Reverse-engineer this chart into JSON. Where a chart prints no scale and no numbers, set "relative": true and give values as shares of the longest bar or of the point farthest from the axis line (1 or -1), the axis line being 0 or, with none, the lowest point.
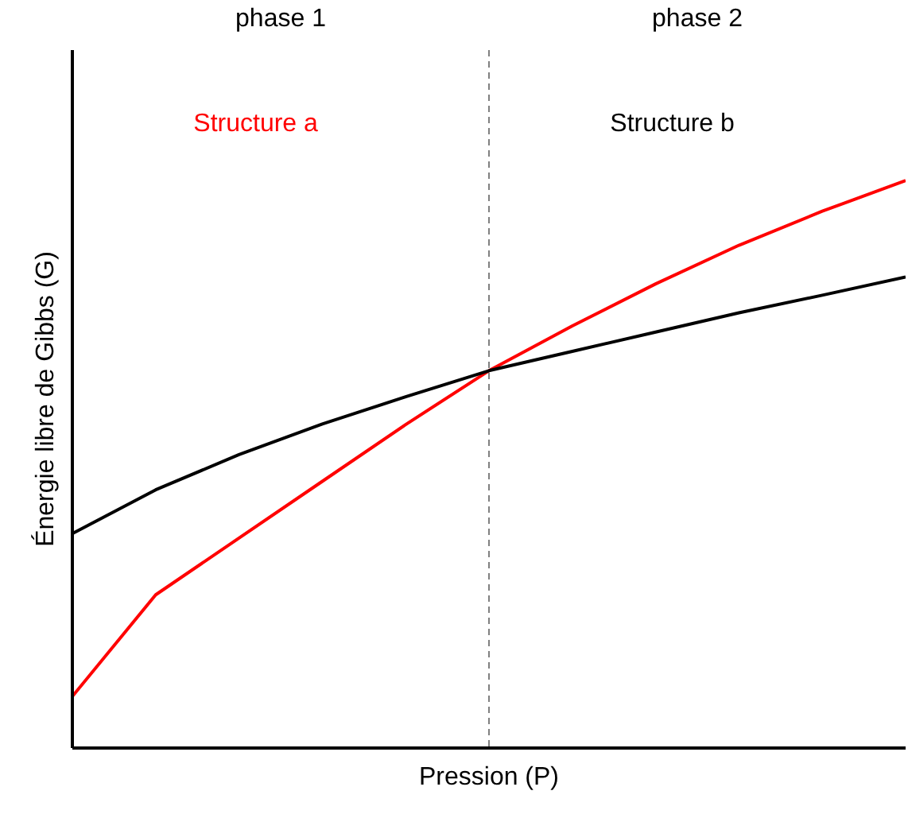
{
  "chart_data": {
    "type": "line",
    "relative": true,
    "xlabel": "Pression (P)",
    "ylabel": "Énergie libre de Gibbs (G)",
    "categories": [
      null,
      null,
      null,
      null,
      null,
      null,
      null,
      null,
      null,
      null,
      null
    ],
    "series": [
      {
        "name": "Structure a",
        "color": "#ff0000",
        "values": [
          0.091,
          0.27,
          0.37,
          0.47,
          0.57,
          0.665,
          0.744,
          0.818,
          0.886,
          0.946,
          1
        ]
      },
      {
        "name": "Structure b",
        "color": "#000000",
        "values": [
          0.378,
          0.455,
          0.517,
          0.571,
          0.619,
          0.665,
          0.699,
          0.733,
          0.767,
          0.798,
          0.83
        ]
      }
    ],
    "ref_lines": [
      {
        "axis": "x",
        "color": "#808080",
        "line_style": "dashed"
      }
    ],
    "annotations": [
      "phase 1",
      "phase 2"
    ]
  }
}
